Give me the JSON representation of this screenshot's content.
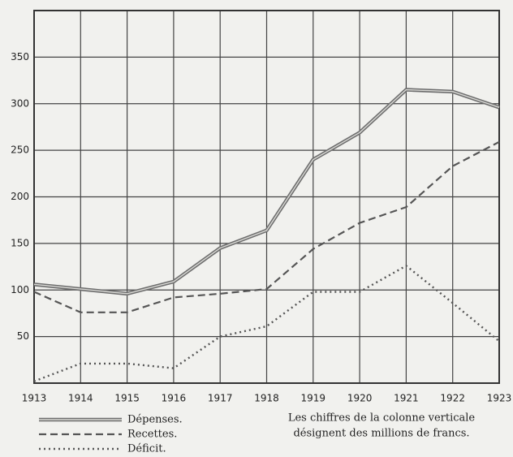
{
  "chart_data": {
    "type": "line",
    "x": [
      1913,
      1914,
      1915,
      1916,
      1917,
      1918,
      1919,
      1920,
      1921,
      1922,
      1923
    ],
    "xlim": [
      1913,
      1923
    ],
    "xticks": [
      1913,
      1914,
      1915,
      1916,
      1917,
      1918,
      1919,
      1920,
      1921,
      1922,
      1923
    ],
    "ylim": [
      0,
      400
    ],
    "yticks": [
      50,
      100,
      150,
      200,
      250,
      300,
      350
    ],
    "grid": true,
    "series": [
      {
        "name": "Dépenses.",
        "color": "#6e6e6e",
        "line_style": "double",
        "values": [
          106,
          101,
          96,
          109,
          145,
          164,
          240,
          269,
          315,
          313,
          296
        ]
      },
      {
        "name": "Recettes.",
        "color": "#555555",
        "line_style": "dashed",
        "values": [
          98,
          76,
          76,
          92,
          96,
          101,
          144,
          172,
          189,
          233,
          259
        ]
      },
      {
        "name": "Déficit.",
        "color": "#555555",
        "line_style": "dotted",
        "values": [
          2,
          21,
          21,
          16,
          50,
          61,
          98,
          98,
          126,
          86,
          45
        ]
      }
    ],
    "note": [
      "Les chiffres de la colonne verticale",
      "désignent des millions de francs."
    ]
  }
}
